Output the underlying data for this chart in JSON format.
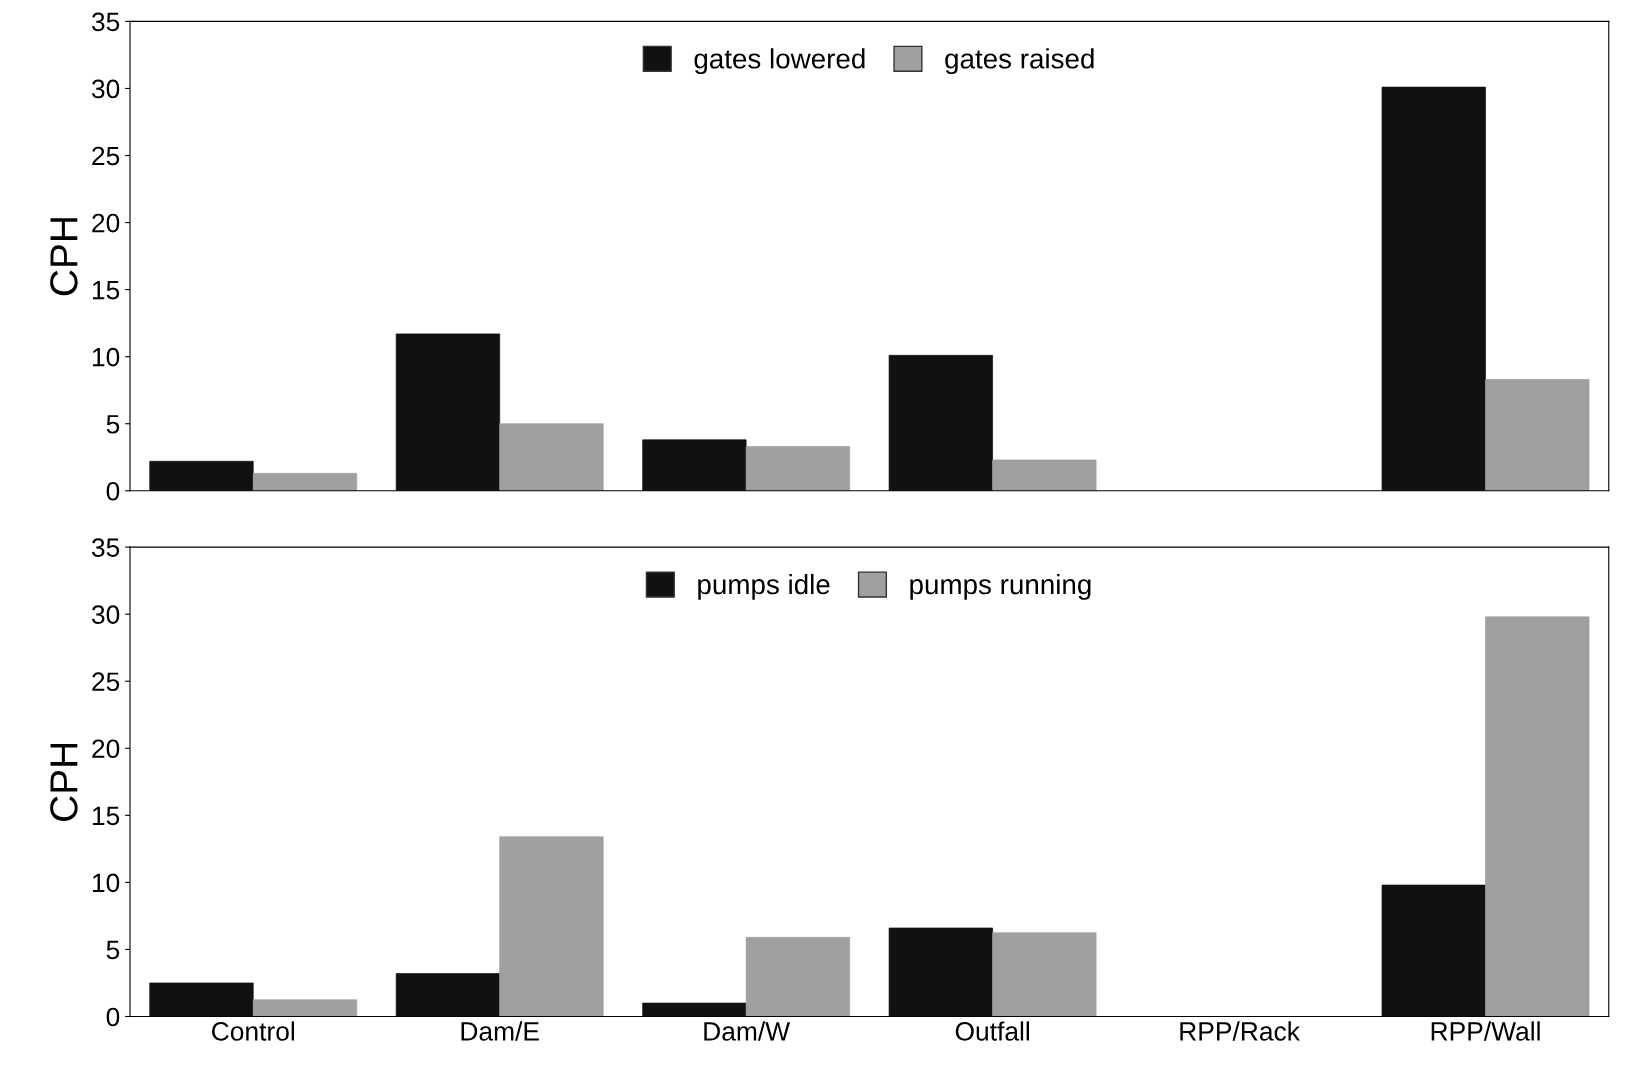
{
  "chart_data": [
    {
      "type": "bar",
      "ylabel": "CPH",
      "categories": [
        null,
        null,
        null,
        null,
        null,
        null
      ],
      "ylim": [
        0,
        35
      ],
      "yticks": [
        0,
        5,
        10,
        15,
        20,
        25,
        30,
        35
      ],
      "legend": "top",
      "tick_labels": "y",
      "series": [
        {
          "name": "gates lowered",
          "color": "#111111",
          "values": [
            2.2,
            11.7,
            3.8,
            10.1,
            null,
            30.1
          ]
        },
        {
          "name": "gates raised",
          "color": "#a0a0a0",
          "values": [
            1.3,
            5.0,
            3.3,
            2.3,
            null,
            8.3
          ]
        }
      ]
    },
    {
      "type": "bar",
      "ylabel": "CPH",
      "categories": [
        "Control",
        "Dam/E",
        "Dam/W",
        "Outfall",
        "RPP/Rack",
        "RPP/Wall"
      ],
      "ylim": [
        0,
        35
      ],
      "yticks": [
        0,
        5,
        10,
        15,
        20,
        25,
        30,
        35
      ],
      "legend": "top",
      "series": [
        {
          "name": "pumps idle",
          "color": "#111111",
          "values": [
            2.5,
            3.2,
            1.0,
            6.6,
            null,
            9.8
          ]
        },
        {
          "name": "pumps running",
          "color": "#a0a0a0",
          "values": [
            1.25,
            13.4,
            5.9,
            6.25,
            null,
            29.8
          ]
        }
      ]
    }
  ]
}
